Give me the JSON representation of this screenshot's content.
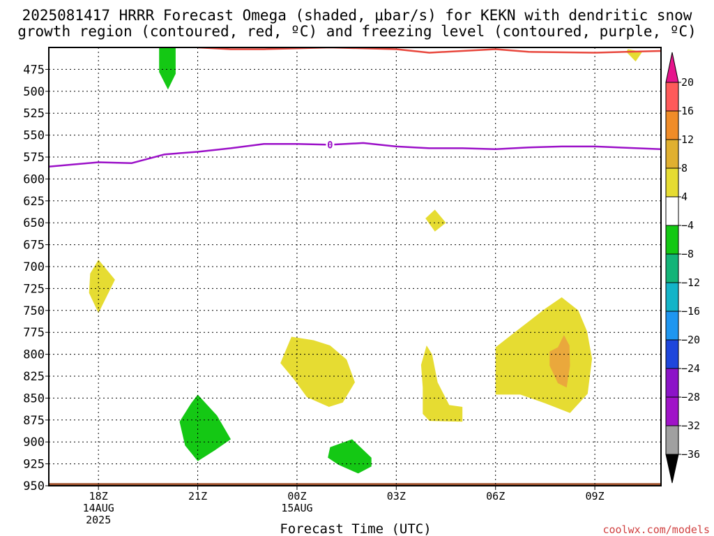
{
  "chart_data": {
    "type": "contour",
    "title_line1": "2025081417 HRRR Forecast Omega (shaded, μbar/s) for KEKN with dendritic snow",
    "title_line2": "growth region (contoured, red, ºC) and freezing level (contoured, purple, ºC)",
    "xlabel": "Forecast Time (UTC)",
    "ylabel": "",
    "credit": "coolwx.com/models",
    "x_axis": {
      "start": "2025-08-14 16:30Z",
      "end": "2025-08-15 11:00Z",
      "ticks": [
        {
          "time": "2025-08-14 18Z",
          "lines": [
            "18Z",
            "14AUG",
            "2025"
          ]
        },
        {
          "time": "2025-08-14 21Z",
          "lines": [
            "21Z"
          ]
        },
        {
          "time": "2025-08-15 00Z",
          "lines": [
            "00Z",
            "15AUG"
          ]
        },
        {
          "time": "2025-08-15 03Z",
          "lines": [
            "03Z"
          ]
        },
        {
          "time": "2025-08-15 06Z",
          "lines": [
            "06Z"
          ]
        },
        {
          "time": "2025-08-15 09Z",
          "lines": [
            "09Z"
          ]
        }
      ]
    },
    "y_axis": {
      "units": "hPa",
      "top": 450,
      "bottom": 950,
      "ticks": [
        475,
        500,
        525,
        550,
        575,
        600,
        625,
        650,
        675,
        700,
        725,
        750,
        775,
        800,
        825,
        850,
        875,
        900,
        925,
        950
      ]
    },
    "grid": true,
    "colorbar": {
      "labels": [
        "20",
        "16",
        "12",
        "8",
        "4",
        "−4",
        "−8",
        "−12",
        "−16",
        "−20",
        "−24",
        "−28",
        "−32",
        "−36"
      ],
      "colors": [
        "#ff5a5a",
        "#f08c28",
        "#e0b030",
        "#e6dc32",
        "#ffffff",
        "#14c814",
        "#14b478",
        "#14b4c8",
        "#1e96f0",
        "#1e46dc",
        "#8c14c8",
        "#a014c8",
        "#a0a0a0"
      ],
      "top_arrow_color": "#e6148c",
      "bottom_arrow_color": "#000000"
    },
    "freezing_level": {
      "color": "#9b10c8",
      "label": "0",
      "label_time": "2025-08-15 01Z",
      "points": [
        [
          "2025-08-14 16:30Z",
          586
        ],
        [
          "2025-08-14 18Z",
          581
        ],
        [
          "2025-08-14 19Z",
          582
        ],
        [
          "2025-08-14 20Z",
          572
        ],
        [
          "2025-08-14 21Z",
          569
        ],
        [
          "2025-08-14 22Z",
          565
        ],
        [
          "2025-08-14 23Z",
          560
        ],
        [
          "2025-08-15 00Z",
          560
        ],
        [
          "2025-08-15 01Z",
          561
        ],
        [
          "2025-08-15 02Z",
          559
        ],
        [
          "2025-08-15 03Z",
          563
        ],
        [
          "2025-08-15 04Z",
          565
        ],
        [
          "2025-08-15 05Z",
          565
        ],
        [
          "2025-08-15 06Z",
          566
        ],
        [
          "2025-08-15 07Z",
          564
        ],
        [
          "2025-08-15 08Z",
          563
        ],
        [
          "2025-08-15 09Z",
          563
        ],
        [
          "2025-08-15 11Z",
          566
        ]
      ]
    },
    "dgz_contour": {
      "color": "#e8463c",
      "points": [
        [
          "2025-08-14 21Z",
          450
        ],
        [
          "2025-08-14 22Z",
          452
        ],
        [
          "2025-08-14 23Z",
          452
        ],
        [
          "2025-08-15 00Z",
          451
        ],
        [
          "2025-08-15 01Z",
          450
        ],
        [
          "2025-08-15 03Z",
          452
        ],
        [
          "2025-08-15 04Z",
          456
        ],
        [
          "2025-08-15 05Z",
          454
        ],
        [
          "2025-08-15 06Z",
          452
        ],
        [
          "2025-08-15 07Z",
          455
        ],
        [
          "2025-08-15 09Z",
          456
        ],
        [
          "2025-08-15 11Z",
          454
        ]
      ]
    },
    "shaded_regions": [
      {
        "fill": "#14c814",
        "points": [
          [
            "2025-08-14 20Z",
            450
          ],
          [
            "2025-08-14 20:20Z",
            450
          ],
          [
            "2025-08-14 20:20Z",
            480
          ],
          [
            "2025-08-14 20:06Z",
            498
          ],
          [
            "2025-08-14 19:50Z",
            478
          ],
          [
            "2025-08-14 19:50Z",
            450
          ]
        ]
      },
      {
        "fill": "#e6dc32",
        "points": [
          [
            "2025-08-15 10:00Z",
            452
          ],
          [
            "2025-08-15 10:26Z",
            455
          ],
          [
            "2025-08-15 10:14Z",
            466
          ],
          [
            "2025-08-15 09:57Z",
            455
          ]
        ]
      },
      {
        "fill": "#e6dc32",
        "points": [
          [
            "2025-08-15 04:10Z",
            635
          ],
          [
            "2025-08-15 04:30Z",
            650
          ],
          [
            "2025-08-15 04:10Z",
            660
          ],
          [
            "2025-08-15 03:53Z",
            645
          ]
        ]
      },
      {
        "fill": "#e6dc32",
        "points": [
          [
            "2025-08-14 18Z",
            692
          ],
          [
            "2025-08-14 18:30Z",
            715
          ],
          [
            "2025-08-14 18Z",
            753
          ],
          [
            "2025-08-14 17:43Z",
            730
          ],
          [
            "2025-08-14 17:45Z",
            708
          ]
        ]
      },
      {
        "fill": "#e6dc32",
        "points": [
          [
            "2025-08-14 23:50Z",
            780
          ],
          [
            "2025-08-15 00:30Z",
            784
          ],
          [
            "2025-08-15 01:00Z",
            790
          ],
          [
            "2025-08-15 01:30Z",
            806
          ],
          [
            "2025-08-15 01:45Z",
            832
          ],
          [
            "2025-08-15 01:23Z",
            855
          ],
          [
            "2025-08-15 00:58Z",
            860
          ],
          [
            "2025-08-15 00:18Z",
            849
          ],
          [
            "2025-08-14 23:55Z",
            829
          ],
          [
            "2025-08-14 23:30Z",
            810
          ]
        ]
      },
      {
        "fill": "#e6dc32",
        "points": [
          [
            "2025-08-15 03:45Z",
            812
          ],
          [
            "2025-08-15 03:55Z",
            790
          ],
          [
            "2025-08-15 04:05Z",
            800
          ],
          [
            "2025-08-15 04:15Z",
            832
          ],
          [
            "2025-08-15 04:36Z",
            858
          ],
          [
            "2025-08-15 05Z",
            860
          ],
          [
            "2025-08-15 05Z",
            877
          ],
          [
            "2025-08-15 04Z",
            876
          ],
          [
            "2025-08-15 03:48Z",
            868
          ],
          [
            "2025-08-15 03:48Z",
            838
          ]
        ]
      },
      {
        "fill": "#e6dc32",
        "points": [
          [
            "2025-08-15 06Z",
            792
          ],
          [
            "2025-08-15 06:45Z",
            770
          ],
          [
            "2025-08-15 07:30Z",
            748
          ],
          [
            "2025-08-15 08Z",
            735
          ],
          [
            "2025-08-15 08:30Z",
            750
          ],
          [
            "2025-08-15 08:46Z",
            774
          ],
          [
            "2025-08-15 08:55Z",
            805
          ],
          [
            "2025-08-15 08:47Z",
            845
          ],
          [
            "2025-08-15 08:15Z",
            867
          ],
          [
            "2025-08-15 07:30Z",
            856
          ],
          [
            "2025-08-15 06:45Z",
            846
          ],
          [
            "2025-08-15 06Z",
            846
          ]
        ]
      },
      {
        "fill": "#eaa83c",
        "points": [
          [
            "2025-08-15 07:53Z",
            792
          ],
          [
            "2025-08-15 08:04Z",
            778
          ],
          [
            "2025-08-15 08:14Z",
            790
          ],
          [
            "2025-08-15 08:15Z",
            813
          ],
          [
            "2025-08-15 08:09Z",
            838
          ],
          [
            "2025-08-15 07:53Z",
            833
          ],
          [
            "2025-08-15 07:38Z",
            813
          ],
          [
            "2025-08-15 07:38Z",
            797
          ]
        ]
      },
      {
        "fill": "#14c814",
        "points": [
          [
            "2025-08-14 21Z",
            846
          ],
          [
            "2025-08-14 21:35Z",
            870
          ],
          [
            "2025-08-14 22Z",
            897
          ],
          [
            "2025-08-14 21:30Z",
            910
          ],
          [
            "2025-08-14 21Z",
            922
          ],
          [
            "2025-08-14 20:37Z",
            904
          ],
          [
            "2025-08-14 20:27Z",
            877
          ],
          [
            "2025-08-14 20:48Z",
            856
          ]
        ]
      },
      {
        "fill": "#14c814",
        "points": [
          [
            "2025-08-15 01:00Z",
            906
          ],
          [
            "2025-08-15 01:40Z",
            897
          ],
          [
            "2025-08-15 02:15Z",
            918
          ],
          [
            "2025-08-15 02:15Z",
            928
          ],
          [
            "2025-08-15 01:51Z",
            936
          ],
          [
            "2025-08-15 01:15Z",
            926
          ],
          [
            "2025-08-15 00:56Z",
            918
          ]
        ]
      },
      {
        "fill": "#a0522d",
        "points": [
          [
            "2025-08-14 16:30Z",
            947
          ],
          [
            "2025-08-15 11Z",
            947
          ],
          [
            "2025-08-15 11Z",
            955
          ],
          [
            "2025-08-14 16:30Z",
            955
          ]
        ]
      }
    ]
  }
}
